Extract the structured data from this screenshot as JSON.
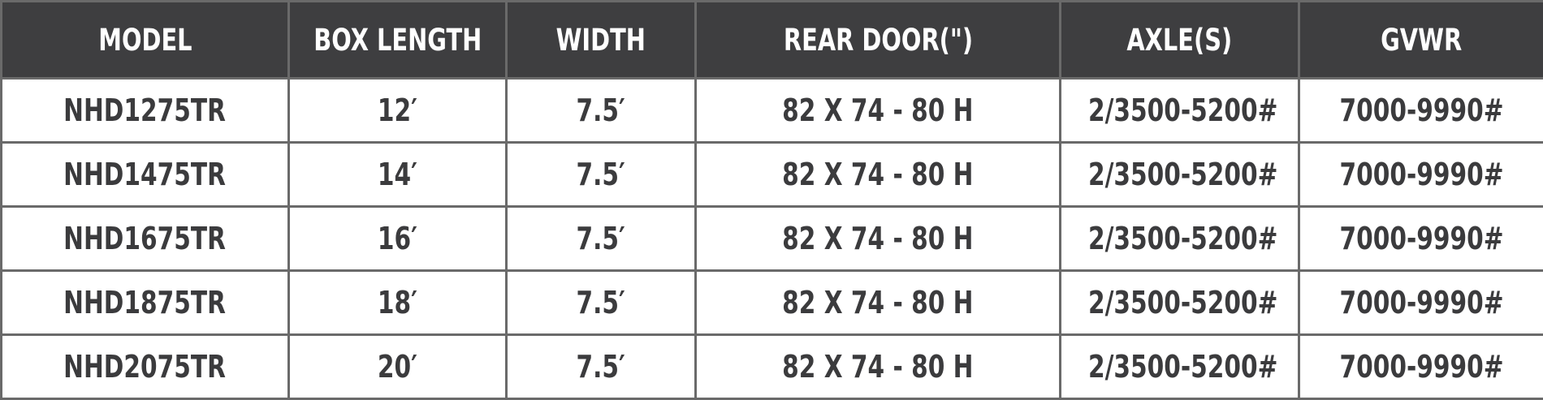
{
  "table": {
    "header": [
      "MODEL",
      "BOX LENGTH",
      "WIDTH",
      "REAR DOOR(\")",
      "AXLE(S)",
      "GVWR"
    ],
    "rows": [
      [
        "NHD1275TR",
        "12′",
        "7.5′",
        "82 X 74 - 80 H",
        "2/3500-5200#",
        "7000-9990#"
      ],
      [
        "NHD1475TR",
        "14′",
        "7.5′",
        "82 X 74 - 80 H",
        "2/3500-5200#",
        "7000-9990#"
      ],
      [
        "NHD1675TR",
        "16′",
        "7.5′",
        "82 X 74 - 80 H",
        "2/3500-5200#",
        "7000-9990#"
      ],
      [
        "NHD1875TR",
        "18′",
        "7.5′",
        "82 X 74 - 80 H",
        "2/3500-5200#",
        "7000-9990#"
      ],
      [
        "NHD2075TR",
        "20′",
        "7.5′",
        "82 X 74 - 80 H",
        "2/3500-5200#",
        "7000-9990#"
      ]
    ]
  }
}
